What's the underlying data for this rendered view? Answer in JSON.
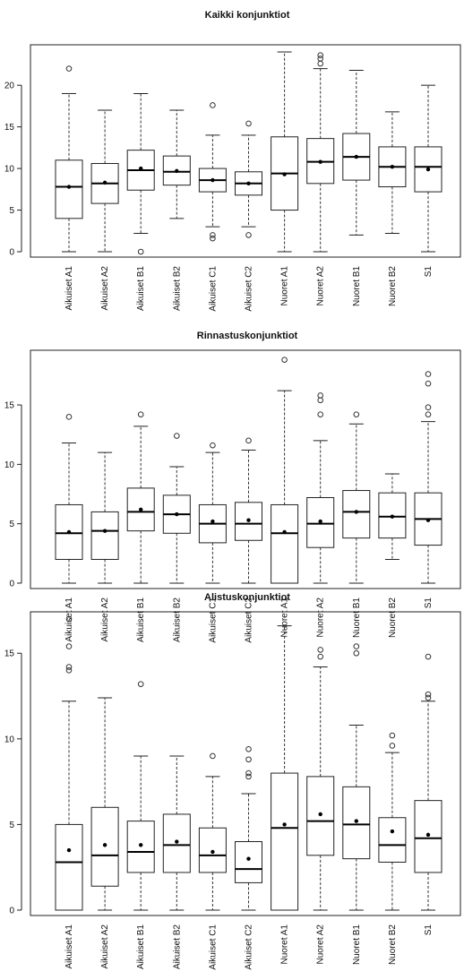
{
  "chart_data": [
    {
      "type": "boxplot",
      "title": "Kaikki konjunktiot",
      "categories": [
        "Aikuiset A1",
        "Aikuiset A2",
        "Aikuiset B1",
        "Aikuiset B2",
        "Aikuiset C1",
        "Aikuiset C2",
        "Nuoret A1",
        "Nuoret A2",
        "Nuoret B1",
        "Nuoret B2",
        "S1"
      ],
      "ylim": [
        0,
        24
      ],
      "yticks": [
        0,
        5,
        10,
        15,
        20
      ],
      "series": [
        {
          "whisker_low": 0,
          "q1": 4.0,
          "median": 7.8,
          "q3": 11.0,
          "whisker_high": 19.0,
          "mean": 7.8,
          "outliers": [
            22.0
          ]
        },
        {
          "whisker_low": 0,
          "q1": 5.8,
          "median": 8.2,
          "q3": 10.6,
          "whisker_high": 17.0,
          "mean": 8.3,
          "outliers": []
        },
        {
          "whisker_low": 2.2,
          "q1": 7.4,
          "median": 9.8,
          "q3": 12.2,
          "whisker_high": 19.0,
          "mean": 10.0,
          "outliers": [
            0.0
          ]
        },
        {
          "whisker_low": 4.0,
          "q1": 8.0,
          "median": 9.6,
          "q3": 11.5,
          "whisker_high": 17.0,
          "mean": 9.7,
          "outliers": []
        },
        {
          "whisker_low": 3.0,
          "q1": 7.2,
          "median": 8.6,
          "q3": 10.0,
          "whisker_high": 14.0,
          "mean": 8.6,
          "outliers": [
            1.6,
            2.0,
            17.6
          ]
        },
        {
          "whisker_low": 3.0,
          "q1": 6.8,
          "median": 8.2,
          "q3": 9.6,
          "whisker_high": 14.0,
          "mean": 8.2,
          "outliers": [
            2.0,
            15.4
          ]
        },
        {
          "whisker_low": 0,
          "q1": 5.0,
          "median": 9.4,
          "q3": 13.8,
          "whisker_high": 24.0,
          "mean": 9.3,
          "outliers": []
        },
        {
          "whisker_low": 0,
          "q1": 8.2,
          "median": 10.8,
          "q3": 13.6,
          "whisker_high": 22.0,
          "mean": 10.8,
          "outliers": [
            22.6,
            23.2,
            23.6
          ]
        },
        {
          "whisker_low": 2.0,
          "q1": 8.6,
          "median": 11.4,
          "q3": 14.2,
          "whisker_high": 21.8,
          "mean": 11.4,
          "outliers": []
        },
        {
          "whisker_low": 2.2,
          "q1": 7.8,
          "median": 10.2,
          "q3": 12.6,
          "whisker_high": 16.8,
          "mean": 10.2,
          "outliers": []
        },
        {
          "whisker_low": 0,
          "q1": 7.2,
          "median": 10.2,
          "q3": 12.6,
          "whisker_high": 20.0,
          "mean": 9.9,
          "outliers": []
        }
      ]
    },
    {
      "type": "boxplot",
      "title": "Rinnastuskonjunktiot",
      "categories": [
        "Aikuiset A1",
        "Aikuiset A2",
        "Aikuiset B1",
        "Aikuiset B2",
        "Aikuiset C1",
        "Aikuiset C2",
        "Nuoret A1",
        "Nuoret A2",
        "Nuoret B1",
        "Nuoret B2",
        "S1"
      ],
      "ylim": [
        0,
        19
      ],
      "yticks": [
        0,
        5,
        10,
        15
      ],
      "series": [
        {
          "whisker_low": 0,
          "q1": 2.0,
          "median": 4.2,
          "q3": 6.6,
          "whisker_high": 11.8,
          "mean": 4.3,
          "outliers": [
            14.0
          ]
        },
        {
          "whisker_low": 0,
          "q1": 2.0,
          "median": 4.4,
          "q3": 6.0,
          "whisker_high": 11.0,
          "mean": 4.4,
          "outliers": []
        },
        {
          "whisker_low": 0,
          "q1": 4.4,
          "median": 6.0,
          "q3": 8.0,
          "whisker_high": 13.2,
          "mean": 6.2,
          "outliers": [
            14.2
          ]
        },
        {
          "whisker_low": 0,
          "q1": 4.2,
          "median": 5.8,
          "q3": 7.4,
          "whisker_high": 9.8,
          "mean": 5.8,
          "outliers": [
            12.4
          ]
        },
        {
          "whisker_low": 0,
          "q1": 3.4,
          "median": 5.0,
          "q3": 6.6,
          "whisker_high": 11.0,
          "mean": 5.2,
          "outliers": [
            11.6
          ]
        },
        {
          "whisker_low": 0,
          "q1": 3.6,
          "median": 5.0,
          "q3": 6.8,
          "whisker_high": 11.2,
          "mean": 5.3,
          "outliers": [
            12.0
          ]
        },
        {
          "whisker_low": 0,
          "q1": 0,
          "median": 4.2,
          "q3": 6.6,
          "whisker_high": 16.2,
          "mean": 4.3,
          "outliers": [
            18.8
          ]
        },
        {
          "whisker_low": 0,
          "q1": 3.0,
          "median": 5.0,
          "q3": 7.2,
          "whisker_high": 12.0,
          "mean": 5.2,
          "outliers": [
            14.2,
            15.4,
            15.8
          ]
        },
        {
          "whisker_low": 0,
          "q1": 3.8,
          "median": 6.0,
          "q3": 7.8,
          "whisker_high": 13.4,
          "mean": 6.0,
          "outliers": [
            14.2
          ]
        },
        {
          "whisker_low": 2.0,
          "q1": 3.8,
          "median": 5.6,
          "q3": 7.6,
          "whisker_high": 9.2,
          "mean": 5.6,
          "outliers": []
        },
        {
          "whisker_low": 0,
          "q1": 3.2,
          "median": 5.4,
          "q3": 7.6,
          "whisker_high": 13.6,
          "mean": 5.3,
          "outliers": [
            14.2,
            14.8,
            16.8,
            17.6
          ]
        }
      ]
    },
    {
      "type": "boxplot",
      "title": "Alistuskonjunktiot",
      "categories": [
        "Aikuiset A1",
        "Aikuiset A2",
        "Aikuiset B1",
        "Aikuiset B2",
        "Aikuiset C1",
        "Aikuiset C2",
        "Nuoret A1",
        "Nuoret A2",
        "Nuoret B1",
        "Nuoret B2",
        "S1"
      ],
      "ylim": [
        0,
        17
      ],
      "yticks": [
        0,
        5,
        10,
        15
      ],
      "series": [
        {
          "whisker_low": 0,
          "q1": 0,
          "median": 2.8,
          "q3": 5.0,
          "whisker_high": 12.2,
          "mean": 3.5,
          "outliers": [
            14.0,
            14.2,
            15.4,
            17.0
          ]
        },
        {
          "whisker_low": 0,
          "q1": 1.4,
          "median": 3.2,
          "q3": 6.0,
          "whisker_high": 12.4,
          "mean": 3.8,
          "outliers": []
        },
        {
          "whisker_low": 0,
          "q1": 2.2,
          "median": 3.4,
          "q3": 5.2,
          "whisker_high": 9.0,
          "mean": 3.8,
          "outliers": [
            13.2
          ]
        },
        {
          "whisker_low": 0,
          "q1": 2.2,
          "median": 3.8,
          "q3": 5.6,
          "whisker_high": 9.0,
          "mean": 4.0,
          "outliers": []
        },
        {
          "whisker_low": 0,
          "q1": 2.2,
          "median": 3.2,
          "q3": 4.8,
          "whisker_high": 7.8,
          "mean": 3.4,
          "outliers": [
            9.0
          ]
        },
        {
          "whisker_low": 0,
          "q1": 1.6,
          "median": 2.4,
          "q3": 4.0,
          "whisker_high": 6.8,
          "mean": 3.0,
          "outliers": [
            7.8,
            8.0,
            8.8,
            9.4
          ]
        },
        {
          "whisker_low": 0,
          "q1": 0,
          "median": 4.8,
          "q3": 8.0,
          "whisker_high": 16.6,
          "mean": 5.0,
          "outliers": []
        },
        {
          "whisker_low": 0,
          "q1": 3.2,
          "median": 5.2,
          "q3": 7.8,
          "whisker_high": 14.2,
          "mean": 5.6,
          "outliers": [
            14.8,
            15.2
          ]
        },
        {
          "whisker_low": 0,
          "q1": 3.0,
          "median": 5.0,
          "q3": 7.2,
          "whisker_high": 10.8,
          "mean": 5.2,
          "outliers": [
            15.0,
            15.4
          ]
        },
        {
          "whisker_low": 0,
          "q1": 2.8,
          "median": 3.8,
          "q3": 5.4,
          "whisker_high": 9.2,
          "mean": 4.6,
          "outliers": [
            9.6,
            10.2
          ]
        },
        {
          "whisker_low": 0,
          "q1": 2.2,
          "median": 4.2,
          "q3": 6.4,
          "whisker_high": 12.2,
          "mean": 4.4,
          "outliers": [
            12.4,
            12.6,
            14.8
          ]
        }
      ]
    }
  ]
}
